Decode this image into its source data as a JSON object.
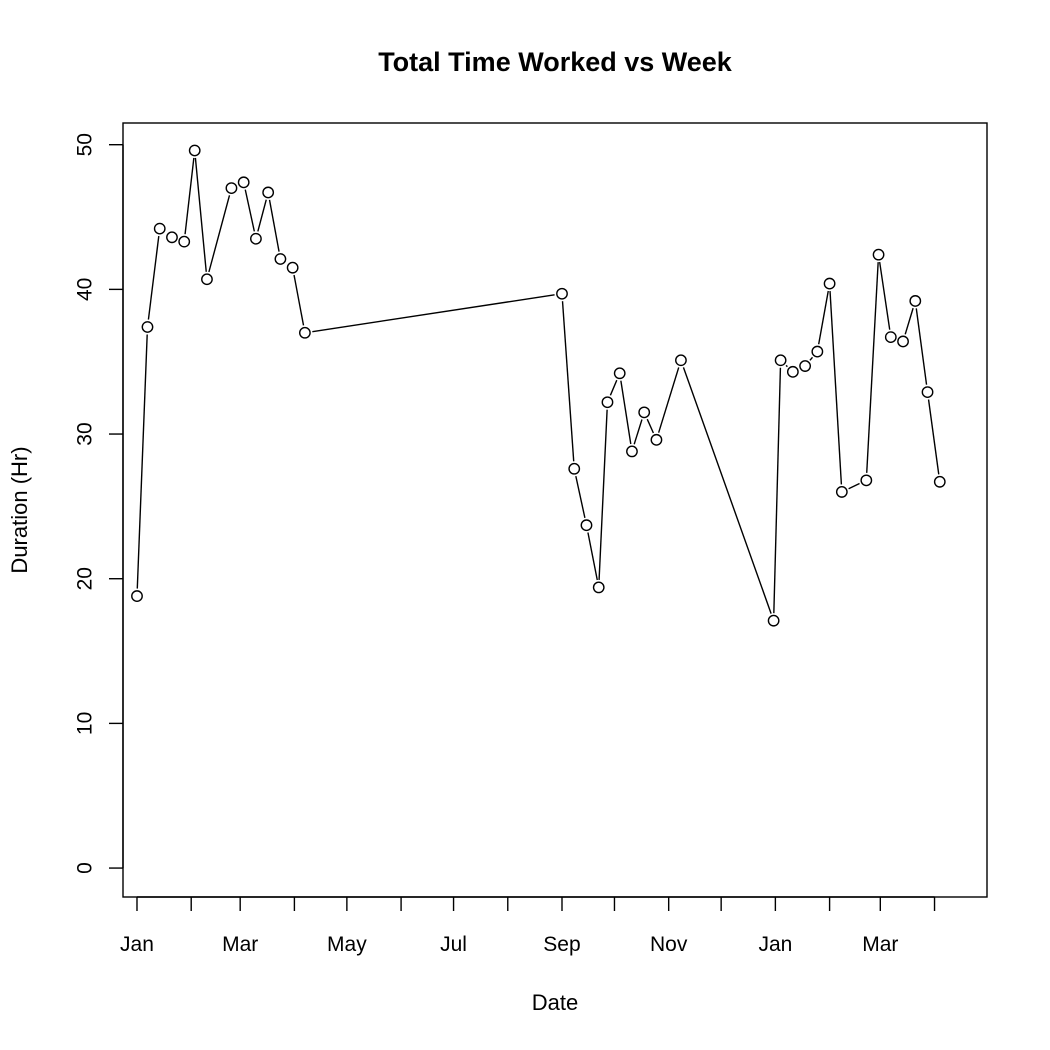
{
  "chart_data": {
    "type": "line",
    "title": "Total Time Worked vs Week",
    "xlabel": "Date",
    "ylabel": "Duration (Hr)",
    "xlim": [
      "2014-12-24",
      "2016-05-01"
    ],
    "ylim": [
      -2,
      51.5
    ],
    "y_ticks": [
      0,
      10,
      20,
      30,
      40,
      50
    ],
    "x_labeled_ticks": [
      {
        "date": "2015-01-01",
        "label": "Jan"
      },
      {
        "date": "2015-03-01",
        "label": "Mar"
      },
      {
        "date": "2015-05-01",
        "label": "May"
      },
      {
        "date": "2015-07-01",
        "label": "Jul"
      },
      {
        "date": "2015-09-01",
        "label": "Sep"
      },
      {
        "date": "2015-11-01",
        "label": "Nov"
      },
      {
        "date": "2016-01-01",
        "label": "Jan"
      },
      {
        "date": "2016-03-01",
        "label": "Mar"
      }
    ],
    "x_minor_ticks": [
      "2015-02-01",
      "2015-04-01",
      "2015-06-01",
      "2015-08-01",
      "2015-10-01",
      "2015-12-01",
      "2016-02-01",
      "2016-04-01"
    ],
    "grid": false,
    "legend": "none",
    "series": [
      {
        "points": [
          {
            "x": "2015-01-01",
            "y": 18.8
          },
          {
            "x": "2015-01-07",
            "y": 37.4
          },
          {
            "x": "2015-01-14",
            "y": 44.2
          },
          {
            "x": "2015-01-21",
            "y": 43.6
          },
          {
            "x": "2015-01-28",
            "y": 43.3
          },
          {
            "x": "2015-02-03",
            "y": 49.6
          },
          {
            "x": "2015-02-10",
            "y": 40.7
          },
          {
            "x": "2015-02-24",
            "y": 47.0
          },
          {
            "x": "2015-03-03",
            "y": 47.4
          },
          {
            "x": "2015-03-10",
            "y": 43.5
          },
          {
            "x": "2015-03-17",
            "y": 46.7
          },
          {
            "x": "2015-03-24",
            "y": 42.1
          },
          {
            "x": "2015-03-31",
            "y": 41.5
          },
          {
            "x": "2015-04-07",
            "y": 37.0
          },
          {
            "x": "2015-09-01",
            "y": 39.7
          },
          {
            "x": "2015-09-08",
            "y": 27.6
          },
          {
            "x": "2015-09-15",
            "y": 23.7
          },
          {
            "x": "2015-09-22",
            "y": 19.4
          },
          {
            "x": "2015-09-27",
            "y": 32.2
          },
          {
            "x": "2015-10-04",
            "y": 34.2
          },
          {
            "x": "2015-10-11",
            "y": 28.8
          },
          {
            "x": "2015-10-18",
            "y": 31.5
          },
          {
            "x": "2015-10-25",
            "y": 29.6
          },
          {
            "x": "2015-11-08",
            "y": 35.1
          },
          {
            "x": "2015-12-31",
            "y": 17.1
          },
          {
            "x": "2016-01-04",
            "y": 35.1
          },
          {
            "x": "2016-01-11",
            "y": 34.3
          },
          {
            "x": "2016-01-18",
            "y": 34.7
          },
          {
            "x": "2016-01-25",
            "y": 35.7
          },
          {
            "x": "2016-02-01",
            "y": 40.4
          },
          {
            "x": "2016-02-08",
            "y": 26.0
          },
          {
            "x": "2016-02-22",
            "y": 26.8
          },
          {
            "x": "2016-02-29",
            "y": 42.4
          },
          {
            "x": "2016-03-07",
            "y": 36.7
          },
          {
            "x": "2016-03-14",
            "y": 36.4
          },
          {
            "x": "2016-03-21",
            "y": 39.2
          },
          {
            "x": "2016-03-28",
            "y": 32.9
          },
          {
            "x": "2016-04-04",
            "y": 26.7
          }
        ]
      }
    ]
  }
}
